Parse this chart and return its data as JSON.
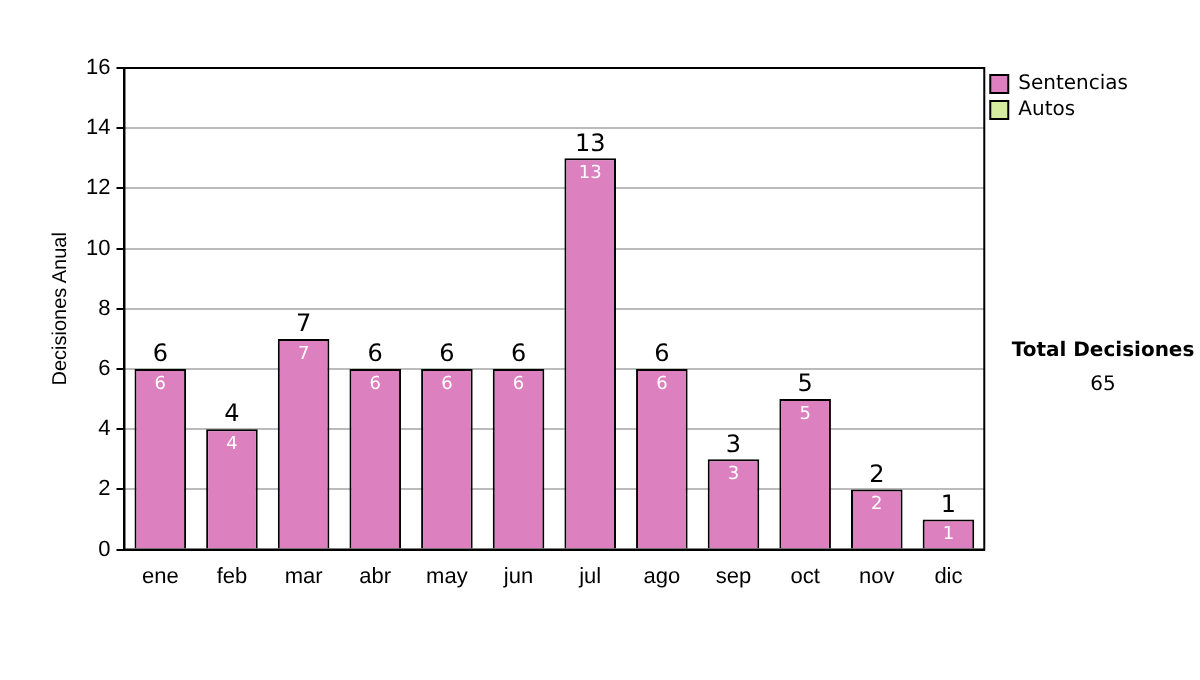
{
  "chart_data": {
    "type": "bar",
    "stacked": true,
    "ylabel": "Decisiones Anual",
    "categories": [
      "ene",
      "feb",
      "mar",
      "abr",
      "may",
      "jun",
      "jul",
      "ago",
      "sep",
      "oct",
      "nov",
      "dic"
    ],
    "series": [
      {
        "name": "Sentencias",
        "color": "#dd80bf",
        "values": [
          6,
          4,
          7,
          6,
          6,
          6,
          13,
          6,
          3,
          5,
          2,
          1
        ]
      },
      {
        "name": "Autos",
        "color": "#d5eba0",
        "values": [
          null,
          null,
          null,
          null,
          null,
          null,
          null,
          null,
          null,
          null,
          null,
          null
        ]
      }
    ],
    "data_labels": true,
    "totals": [
      "6",
      "4",
      "7",
      "6",
      "6",
      "6",
      "13",
      "6",
      "3",
      "5",
      "2",
      "1"
    ],
    "ylim": [
      0,
      16
    ],
    "yticks": [
      0,
      2,
      4,
      6,
      8,
      10,
      12,
      14,
      16
    ],
    "grid": "y",
    "legend": "right",
    "annotations": [
      "Total Decisiones",
      "65"
    ]
  }
}
